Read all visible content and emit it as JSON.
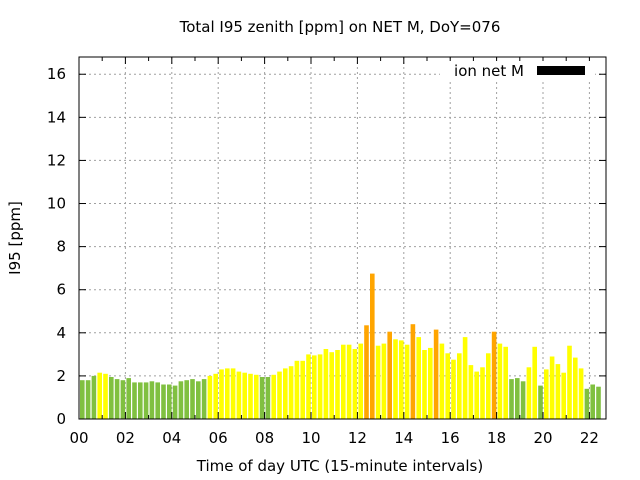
{
  "chart_data": {
    "type": "bar",
    "title": "Total I95 zenith [ppm] on NET M, DoY=076",
    "xlabel": "Time of day UTC (15-minute intervals)",
    "ylabel": "I95 [ppm]",
    "ylim": [
      0,
      16.8
    ],
    "yticks": [
      "0",
      "2",
      "4",
      "6",
      "8",
      "10",
      "12",
      "14",
      "16"
    ],
    "xticks": [
      "00",
      "02",
      "04",
      "06",
      "08",
      "10",
      "12",
      "14",
      "16",
      "18",
      "20",
      "22"
    ],
    "grid": true,
    "legend": {
      "label": "ion net M",
      "position": "top-right"
    },
    "colors": {
      "green": "#80c040",
      "yellow": "#ffff00",
      "orange": "#ffa500"
    },
    "values": [
      1.8,
      1.8,
      2.0,
      2.15,
      2.1,
      1.95,
      1.85,
      1.8,
      1.9,
      1.7,
      1.7,
      1.7,
      1.75,
      1.7,
      1.6,
      1.6,
      1.55,
      1.75,
      1.8,
      1.85,
      1.75,
      1.85,
      2.0,
      2.1,
      2.3,
      2.35,
      2.35,
      2.2,
      2.15,
      2.1,
      2.05,
      1.95,
      1.95,
      2.05,
      2.2,
      2.35,
      2.45,
      2.7,
      2.7,
      3.0,
      2.95,
      3.0,
      3.25,
      3.1,
      3.2,
      3.45,
      3.45,
      3.25,
      3.5,
      4.35,
      6.75,
      3.4,
      3.5,
      4.05,
      3.7,
      3.65,
      3.45,
      4.4,
      3.8,
      3.2,
      3.3,
      4.15,
      3.5,
      3.05,
      2.75,
      3.05,
      3.8,
      2.5,
      2.2,
      2.4,
      3.05,
      4.05,
      3.5,
      3.35,
      1.85,
      1.9,
      1.75,
      2.4,
      3.35,
      1.55,
      2.3,
      2.9,
      2.55,
      2.15,
      3.4,
      2.85,
      2.35,
      1.4,
      1.6,
      1.5
    ],
    "categories_color": [
      "g",
      "g",
      "g",
      "y",
      "y",
      "g",
      "g",
      "g",
      "g",
      "g",
      "g",
      "g",
      "g",
      "g",
      "g",
      "g",
      "g",
      "g",
      "g",
      "g",
      "g",
      "g",
      "y",
      "y",
      "y",
      "y",
      "y",
      "y",
      "y",
      "y",
      "y",
      "g",
      "g",
      "y",
      "y",
      "y",
      "y",
      "y",
      "y",
      "y",
      "y",
      "y",
      "y",
      "y",
      "y",
      "y",
      "y",
      "y",
      "y",
      "o",
      "o",
      "y",
      "y",
      "o",
      "y",
      "y",
      "y",
      "o",
      "y",
      "y",
      "y",
      "o",
      "y",
      "y",
      "y",
      "y",
      "y",
      "y",
      "y",
      "y",
      "y",
      "o",
      "y",
      "y",
      "g",
      "g",
      "g",
      "y",
      "y",
      "g",
      "y",
      "y",
      "y",
      "y",
      "y",
      "y",
      "y",
      "g",
      "g",
      "g"
    ]
  }
}
